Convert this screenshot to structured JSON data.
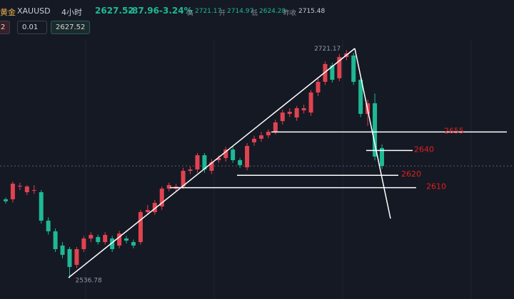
{
  "toolbar": {
    "symbol_cn": "黄金",
    "symbol": "XAUUSD",
    "timeframe": "4小时",
    "last": "2627.52",
    "change": "-87.96",
    "change_pct": "-3.24%",
    "high_label": "高",
    "high": "2721.17",
    "open_label": "开",
    "open": "2714.97",
    "low_label": "低",
    "low": "2624.28",
    "prev_label": "昨收",
    "prev": "2715.48",
    "lot_prefix": "2",
    "lot": "0.01",
    "order_price": "2627.52"
  },
  "chart_data": {
    "type": "candlestick",
    "ylim": [
      2520,
      2730
    ],
    "up_color": "#e0434f",
    "down_color": "#1fb894",
    "open": [
      2600.6,
      2600.6,
      2610.9,
      2606.3,
      2607.5,
      2606.3,
      2583.3,
      2574.7,
      2563.2,
      2560.3,
      2547.6,
      2560.3,
      2568.9,
      2570.1,
      2566,
      2568.9,
      2563.2,
      2568.9,
      2566,
      2566,
      2590.2,
      2590.2,
      2594.8,
      2609.2,
      2609.2,
      2610.9,
      2623.6,
      2624.7,
      2636.2,
      2623.6,
      2632.2,
      2633.9,
      2640.8,
      2632.2,
      2626.4,
      2646.6,
      2649.5,
      2652.3,
      2655.2,
      2663.8,
      2669.6,
      2666.7,
      2672.5,
      2670.7,
      2686.9,
      2695.5,
      2708.7,
      2698.4,
      2715.6,
      2716.8,
      2697.2,
      2669.6,
      2678.2,
      2642
    ],
    "high": [
      2602,
      2615,
      2614,
      2612,
      2612,
      2608,
      2586,
      2577,
      2566,
      2562,
      2562,
      2571,
      2574,
      2572,
      2574,
      2571,
      2575,
      2571,
      2568,
      2592,
      2596,
      2600,
      2611,
      2614,
      2613,
      2626,
      2627,
      2638,
      2638,
      2633,
      2636,
      2643,
      2643,
      2634,
      2646,
      2652,
      2655,
      2657,
      2665,
      2673,
      2674,
      2676,
      2677,
      2689,
      2698,
      2712,
      2711,
      2718,
      2721.17,
      2719,
      2700,
      2681,
      2686,
      2645
    ],
    "low": [
      2597,
      2598,
      2608,
      2604,
      2605,
      2581,
      2572,
      2558,
      2553,
      2536.78,
      2545,
      2558,
      2566,
      2564,
      2564,
      2558,
      2561,
      2565,
      2561,
      2564,
      2588,
      2588,
      2592,
      2607,
      2607,
      2609,
      2621,
      2622,
      2622,
      2621,
      2630,
      2631,
      2630,
      2626,
      2624,
      2644,
      2647,
      2650,
      2653,
      2661,
      2667,
      2664,
      2670,
      2668,
      2684,
      2693,
      2695,
      2696,
      2713,
      2693,
      2667,
      2660,
      2632,
      2625
    ],
    "close": [
      2599,
      2613.2,
      2611.5,
      2610.9,
      2608,
      2583.3,
      2574.7,
      2560.3,
      2555.7,
      2545.9,
      2560.3,
      2568.9,
      2571.8,
      2566,
      2571.8,
      2560.3,
      2572.9,
      2567.2,
      2563.2,
      2590.2,
      2591.9,
      2597.7,
      2609.2,
      2612.1,
      2610.9,
      2623.6,
      2624.7,
      2636.2,
      2624.7,
      2630.5,
      2633.9,
      2640.8,
      2632.2,
      2628.2,
      2643.7,
      2649.5,
      2652.3,
      2655.2,
      2662.7,
      2670.7,
      2671.3,
      2674.2,
      2674.2,
      2686.9,
      2695.5,
      2709.9,
      2697.2,
      2715.6,
      2718.5,
      2695.5,
      2669.6,
      2678.2,
      2635.1,
      2627.52
    ],
    "levels": [
      2655,
      2640,
      2620,
      2610
    ],
    "level_color": "#e02020"
  }
}
